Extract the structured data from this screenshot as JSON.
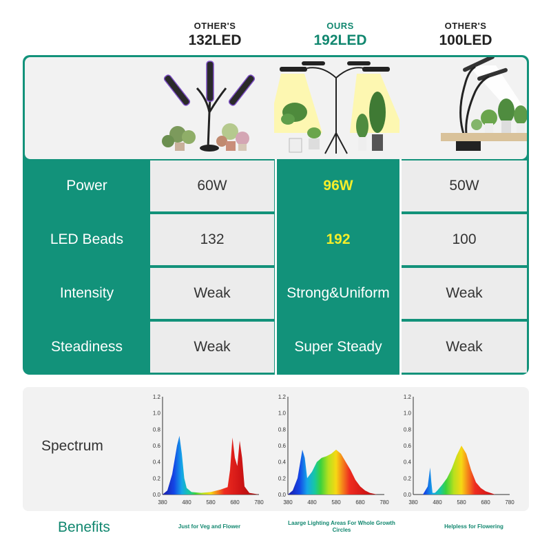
{
  "headers": [
    {
      "sub": "OTHER'S",
      "main": "132LED"
    },
    {
      "sub": "OURS",
      "main": "192LED"
    },
    {
      "sub": "OTHER'S",
      "main": "100LED"
    }
  ],
  "rows": [
    {
      "label": "Power",
      "other1": "60W",
      "ours": "96W",
      "other2": "50W"
    },
    {
      "label": "LED Beads",
      "other1": "132",
      "ours": "192",
      "other2": "100"
    },
    {
      "label": "Intensity",
      "other1": "Weak",
      "ours": "Strong&Uniform",
      "other2": "Weak"
    },
    {
      "label": "Steadiness",
      "other1": "Weak",
      "ours": "Super Steady",
      "other2": "Weak"
    }
  ],
  "spectrum_label": "Spectrum",
  "benefits_label": "Benefits",
  "benefits": [
    "Just for Veg and Flower",
    "Laarge Lighting Areas For Whole Growth Circles",
    "Helpless for Flowering"
  ],
  "colors": {
    "teal": "#12927a",
    "highlight": "#f4ee2a",
    "gray_cell": "#ececec"
  },
  "chart_data": [
    {
      "type": "area",
      "xlim": [
        380,
        780
      ],
      "ylim": [
        0,
        1.2
      ],
      "x_ticks": [
        380,
        480,
        580,
        680,
        780
      ],
      "y_ticks": [
        "0.0",
        "0.2",
        "0.4",
        "0.6",
        "0.8",
        "1.0",
        "1.2"
      ],
      "x": [
        380,
        400,
        420,
        440,
        450,
        460,
        470,
        480,
        500,
        540,
        580,
        620,
        650,
        660,
        670,
        680,
        690,
        700,
        710,
        720,
        740,
        780
      ],
      "y": [
        0.0,
        0.05,
        0.25,
        0.6,
        0.72,
        0.5,
        0.2,
        0.08,
        0.03,
        0.02,
        0.03,
        0.06,
        0.09,
        0.3,
        0.7,
        0.45,
        0.35,
        0.66,
        0.45,
        0.1,
        0.02,
        0.0
      ]
    },
    {
      "type": "area",
      "xlim": [
        380,
        780
      ],
      "ylim": [
        0,
        1.2
      ],
      "x_ticks": [
        380,
        480,
        580,
        680,
        780
      ],
      "y_ticks": [
        "0.0",
        "0.2",
        "0.4",
        "0.6",
        "0.8",
        "1.0",
        "1.2"
      ],
      "x": [
        380,
        400,
        420,
        440,
        450,
        460,
        480,
        500,
        520,
        540,
        560,
        580,
        600,
        620,
        640,
        660,
        680,
        700,
        720,
        750,
        780
      ],
      "y": [
        0.0,
        0.05,
        0.2,
        0.55,
        0.45,
        0.2,
        0.28,
        0.4,
        0.45,
        0.47,
        0.5,
        0.55,
        0.5,
        0.4,
        0.3,
        0.18,
        0.1,
        0.05,
        0.02,
        0.0,
        0.0
      ]
    },
    {
      "type": "area",
      "xlim": [
        380,
        780
      ],
      "ylim": [
        0,
        1.2
      ],
      "x_ticks": [
        380,
        480,
        580,
        680,
        780
      ],
      "y_ticks": [
        "0.0",
        "0.2",
        "0.4",
        "0.6",
        "0.8",
        "1.0",
        "1.2"
      ],
      "x": [
        380,
        420,
        440,
        450,
        455,
        460,
        470,
        480,
        500,
        520,
        540,
        560,
        580,
        600,
        620,
        640,
        660,
        680,
        700,
        720,
        780
      ],
      "y": [
        0.0,
        0.0,
        0.1,
        0.33,
        0.15,
        0.02,
        0.02,
        0.05,
        0.12,
        0.2,
        0.32,
        0.48,
        0.6,
        0.5,
        0.3,
        0.15,
        0.08,
        0.04,
        0.02,
        0.0,
        0.0
      ]
    }
  ]
}
